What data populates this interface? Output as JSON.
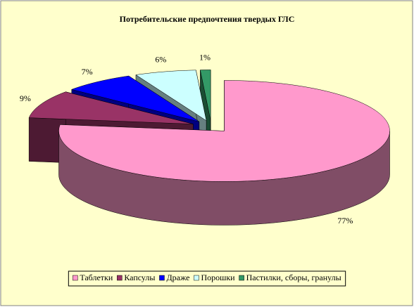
{
  "chart_data": {
    "type": "pie3d",
    "title": "Потребительские предпочтения твердых ГЛС",
    "categories": [
      "Таблетки",
      "Капсулы",
      "Драже",
      "Порошки",
      "Пастилки, сборы, гранулы"
    ],
    "values": [
      77,
      9,
      7,
      6,
      1
    ],
    "value_labels": [
      "77%",
      "9%",
      "7%",
      "6%",
      "1%"
    ],
    "colors": [
      "#ff99cc",
      "#993366",
      "#0000ff",
      "#ccffff",
      "#339966"
    ],
    "legend": "bottom"
  }
}
